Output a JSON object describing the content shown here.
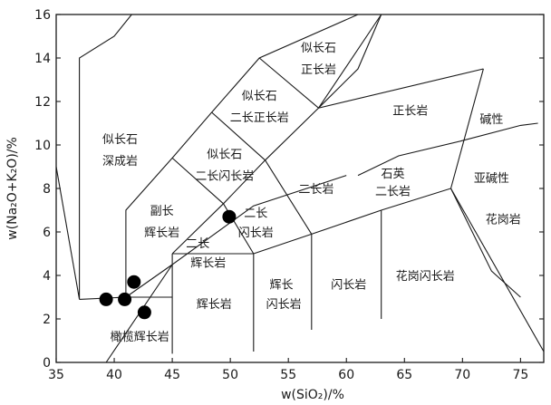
{
  "chart_data": {
    "type": "scatter",
    "title": "",
    "xlabel": "w(SiO₂)/%",
    "ylabel": "w(Na₂O+K₂O)/%",
    "xlim": [
      35,
      77
    ],
    "ylim": [
      0,
      16
    ],
    "grid": false,
    "x_ticks": [
      35,
      40,
      45,
      50,
      55,
      60,
      65,
      70,
      75
    ],
    "y_ticks": [
      0,
      2,
      4,
      6,
      8,
      10,
      12,
      14,
      16
    ],
    "series": [
      {
        "points": [
          {
            "x": 39.3,
            "y": 2.9
          },
          {
            "x": 40.9,
            "y": 2.9
          },
          {
            "x": 41.7,
            "y": 3.7
          },
          {
            "x": 42.6,
            "y": 2.3
          },
          {
            "x": 49.9,
            "y": 6.7
          }
        ],
        "color": "#000000"
      }
    ],
    "boundaries": [
      [
        [
          37,
          2.9
        ],
        [
          37,
          14
        ],
        [
          40,
          15
        ],
        [
          41.5,
          16
        ]
      ],
      [
        [
          35,
          9
        ],
        [
          37,
          2.9
        ]
      ],
      [
        [
          37,
          2.9
        ],
        [
          41,
          3
        ],
        [
          45,
          3
        ]
      ],
      [
        [
          45,
          5
        ],
        [
          52,
          5
        ]
      ],
      [
        [
          45,
          0.4
        ],
        [
          45,
          5
        ]
      ],
      [
        [
          41,
          3
        ],
        [
          41,
          7
        ],
        [
          45,
          9.4
        ],
        [
          48.4,
          11.5
        ],
        [
          52.5,
          14
        ],
        [
          61,
          16
        ]
      ],
      [
        [
          52.5,
          14
        ],
        [
          57.6,
          11.7
        ],
        [
          63,
          16
        ]
      ],
      [
        [
          45,
          9.4
        ],
        [
          49.4,
          7.3
        ],
        [
          53,
          9.3
        ],
        [
          57.6,
          11.7
        ],
        [
          71.8,
          13.5
        ]
      ],
      [
        [
          48.4,
          11.5
        ],
        [
          53,
          9.3
        ]
      ],
      [
        [
          45,
          5
        ],
        [
          49.4,
          7.3
        ],
        [
          52,
          5
        ]
      ],
      [
        [
          52,
          0.5
        ],
        [
          52,
          5
        ],
        [
          57,
          5.9
        ],
        [
          63,
          7
        ],
        [
          69,
          8
        ],
        [
          71.8,
          13.5
        ]
      ],
      [
        [
          53,
          9.3
        ],
        [
          57,
          5.9
        ]
      ],
      [
        [
          57,
          1.5
        ],
        [
          57,
          5.9
        ]
      ],
      [
        [
          63,
          2
        ],
        [
          63,
          7
        ]
      ],
      [
        [
          57.6,
          11.7
        ],
        [
          61,
          13.5
        ],
        [
          63,
          16
        ]
      ],
      [
        [
          69,
          8
        ],
        [
          77,
          0.5
        ]
      ],
      [
        [
          69,
          8
        ],
        [
          72.5,
          4.2
        ],
        [
          75,
          3
        ]
      ],
      [
        [
          61,
          8.6
        ],
        [
          64.5,
          9.5
        ],
        [
          70,
          10.2
        ],
        [
          75,
          10.9
        ],
        [
          76.5,
          11
        ]
      ],
      [
        [
          39.3,
          0
        ],
        [
          45,
          4.5
        ],
        [
          52,
          7.2
        ],
        [
          60,
          8.6
        ]
      ],
      [
        [
          41,
          3
        ],
        [
          45,
          4.5
        ]
      ]
    ],
    "field_labels": [
      {
        "text": "似长石",
        "x": 40.5,
        "y": 10.3
      },
      {
        "text": "深成岩",
        "x": 40.5,
        "y": 9.3
      },
      {
        "text": "似长石",
        "x": 57.6,
        "y": 14.5
      },
      {
        "text": "正长岩",
        "x": 57.6,
        "y": 13.5
      },
      {
        "text": "似长石",
        "x": 52.5,
        "y": 12.3
      },
      {
        "text": "二长正长岩",
        "x": 52.5,
        "y": 11.3
      },
      {
        "text": "似长石",
        "x": 49.5,
        "y": 9.6
      },
      {
        "text": "二长闪长岩",
        "x": 49.5,
        "y": 8.6
      },
      {
        "text": "正长岩",
        "x": 65.5,
        "y": 11.6
      },
      {
        "text": "碱性",
        "x": 72.5,
        "y": 11.2
      },
      {
        "text": "石英",
        "x": 64,
        "y": 8.7
      },
      {
        "text": "二长岩",
        "x": 64,
        "y": 7.9
      },
      {
        "text": "亚碱性",
        "x": 72.5,
        "y": 8.5
      },
      {
        "text": "二长岩",
        "x": 57.4,
        "y": 8.0
      },
      {
        "text": "副长",
        "x": 44.1,
        "y": 7.0
      },
      {
        "text": "辉长岩",
        "x": 44.1,
        "y": 6.0
      },
      {
        "text": "二长",
        "x": 52.2,
        "y": 6.9
      },
      {
        "text": "闪长岩",
        "x": 52.2,
        "y": 6.0
      },
      {
        "text": "二长",
        "x": 47.2,
        "y": 5.5
      },
      {
        "text": "辉长岩",
        "x": 48.1,
        "y": 4.6
      },
      {
        "text": "花岗岩",
        "x": 73.5,
        "y": 6.6
      },
      {
        "text": "花岗闪长岩",
        "x": 66.8,
        "y": 4.0
      },
      {
        "text": "闪长岩",
        "x": 60.2,
        "y": 3.6
      },
      {
        "text": "辉长",
        "x": 54.4,
        "y": 3.6
      },
      {
        "text": "闪长岩",
        "x": 54.6,
        "y": 2.7
      },
      {
        "text": "辉长岩",
        "x": 48.6,
        "y": 2.7
      },
      {
        "text": "橄榄辉长岩",
        "x": 42.2,
        "y": 1.2
      }
    ]
  }
}
